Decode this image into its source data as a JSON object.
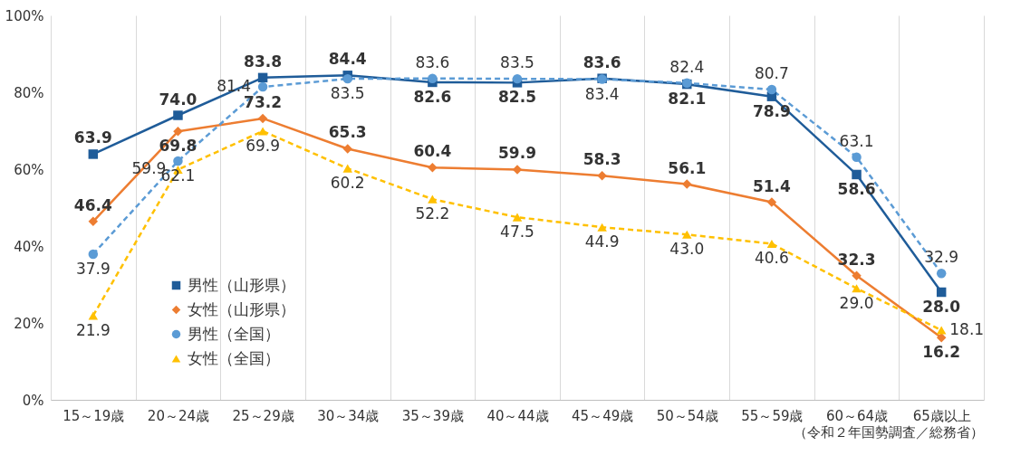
{
  "chart_data": {
    "type": "line",
    "categories": [
      "15～19歳",
      "20～24歳",
      "25～29歳",
      "30～34歳",
      "35～39歳",
      "40～44歳",
      "45～49歳",
      "50～54歳",
      "55～59歳",
      "60～64歳",
      "65歳以上"
    ],
    "series": [
      {
        "name": "男性（山形県）",
        "color": "#1f5c99",
        "marker": "square",
        "line_style": "solid",
        "values": [
          63.9,
          74.0,
          83.8,
          84.4,
          82.6,
          82.5,
          83.6,
          82.1,
          78.9,
          58.6,
          28.0
        ],
        "value_labels": [
          "63.9",
          "74.0",
          "83.8",
          "84.4",
          "82.6",
          "82.5",
          "83.6",
          "82.1",
          "78.9",
          "58.6",
          "28.0"
        ]
      },
      {
        "name": "女性（山形県）",
        "color": "#ed7d31",
        "marker": "diamond",
        "line_style": "solid",
        "values": [
          46.4,
          69.8,
          73.2,
          65.3,
          60.4,
          59.9,
          58.3,
          56.1,
          51.4,
          32.3,
          16.2
        ],
        "value_labels": [
          "46.4",
          "69.8",
          "73.2",
          "65.3",
          "60.4",
          "59.9",
          "58.3",
          "56.1",
          "51.4",
          "32.3",
          "16.2"
        ]
      },
      {
        "name": "男性（全国）",
        "color": "#5b9bd5",
        "marker": "circle",
        "line_style": "dashed",
        "values": [
          37.9,
          62.1,
          81.4,
          83.5,
          83.6,
          83.5,
          83.4,
          82.4,
          80.7,
          63.1,
          32.9
        ],
        "value_labels": [
          "37.9",
          "62.1",
          "81.4",
          "83.5",
          "83.6",
          "83.5",
          "83.4",
          "82.4",
          "80.7",
          "63.1",
          "32.9"
        ]
      },
      {
        "name": "女性（全国）",
        "color": "#ffc000",
        "marker": "triangle",
        "line_style": "dashed",
        "values": [
          21.9,
          59.9,
          69.9,
          60.2,
          52.2,
          47.5,
          44.9,
          43.0,
          40.6,
          29.0,
          18.1
        ],
        "value_labels": [
          "21.9",
          "59.9",
          "69.9",
          "60.2",
          "52.2",
          "47.5",
          "44.9",
          "43.0",
          "40.6",
          "29.0",
          "18.1"
        ]
      }
    ],
    "ylim": [
      0,
      100
    ],
    "yticks": [
      {
        "value": 0,
        "label": "0%"
      },
      {
        "value": 20,
        "label": "20%"
      },
      {
        "value": 40,
        "label": "40%"
      },
      {
        "value": 60,
        "label": "60%"
      },
      {
        "value": 80,
        "label": "80%"
      },
      {
        "value": 100,
        "label": "100%"
      }
    ],
    "grid": "x",
    "legend": "left",
    "annotations": [
      "（令和２年国勢調査／総務省）"
    ]
  }
}
